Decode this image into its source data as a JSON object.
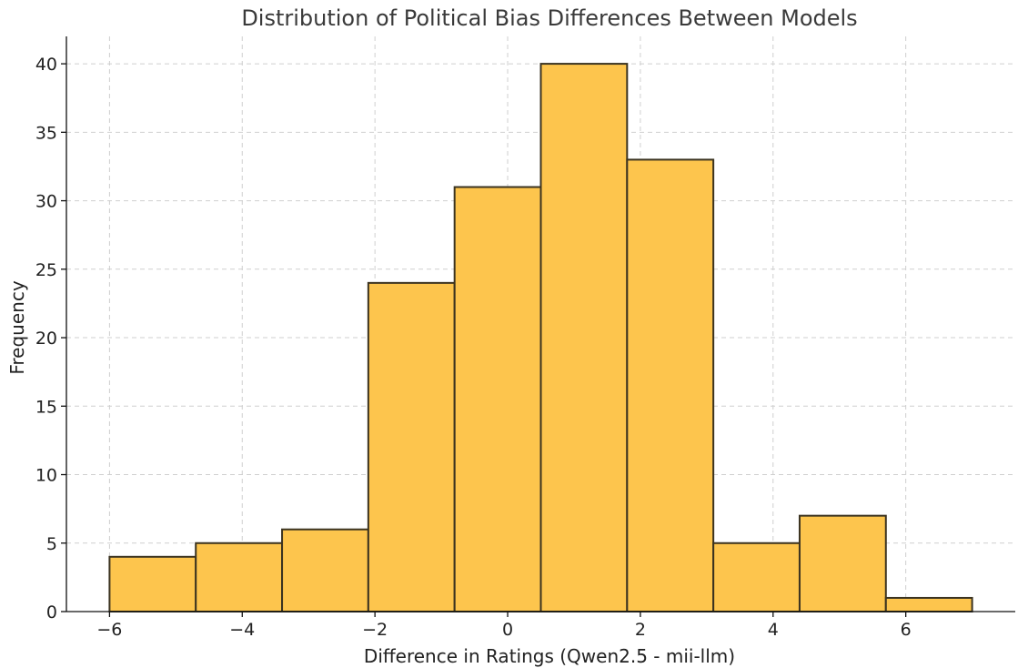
{
  "chart_data": {
    "type": "bar",
    "histogram": true,
    "title": "Distribution of Political Bias Differences Between Models",
    "xlabel": "Difference in Ratings (Qwen2.5 - mii-llm)",
    "ylabel": "Frequency",
    "bin_edges": [
      -6,
      -4.7,
      -3.4,
      -2.1,
      -0.8,
      0.5,
      1.8,
      3.1,
      4.4,
      5.7,
      7
    ],
    "values": [
      4,
      5,
      6,
      24,
      31,
      40,
      33,
      5,
      7,
      1
    ],
    "xlim": [
      -6.65,
      7.65
    ],
    "ylim": [
      0,
      42
    ],
    "x_ticks": [
      -6,
      -4,
      -2,
      0,
      2,
      4,
      6
    ],
    "x_tick_labels": [
      "−6",
      "−4",
      "−2",
      "0",
      "2",
      "4",
      "6"
    ],
    "y_ticks": [
      0,
      5,
      10,
      15,
      20,
      25,
      30,
      35,
      40
    ],
    "y_tick_labels": [
      "0",
      "5",
      "10",
      "15",
      "20",
      "25",
      "30",
      "35",
      "40"
    ],
    "grid": true,
    "bar_color": "#fdc54d",
    "edge_color": "#3b3320"
  }
}
